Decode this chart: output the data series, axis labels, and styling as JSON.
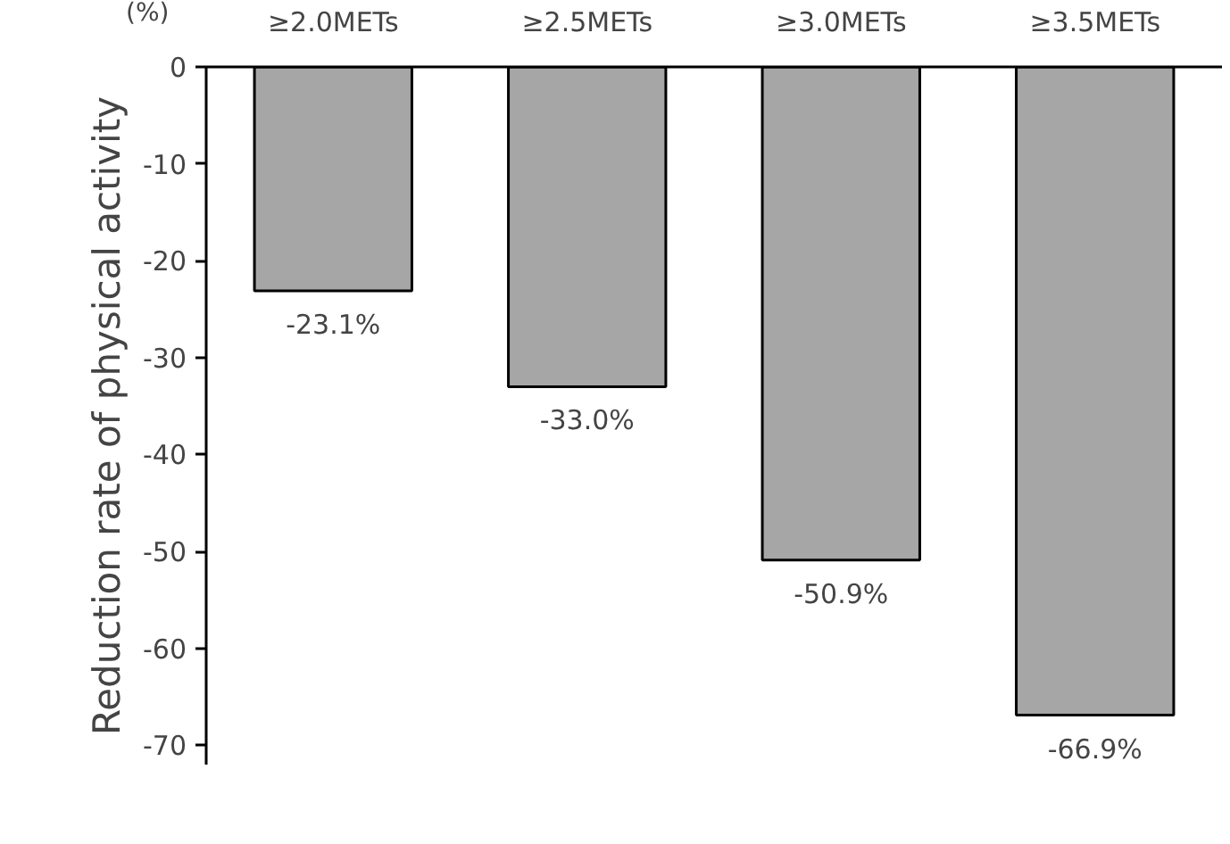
{
  "chart_data": {
    "type": "bar",
    "ylabel": "Reduction rate of physical activity",
    "annotations": [
      "(%)"
    ],
    "categories": [
      "≥2.0METs",
      "≥2.5METs",
      "≥3.0METs",
      "≥3.5METs"
    ],
    "values": [
      -23.1,
      -33.0,
      -50.9,
      -66.9
    ],
    "value_labels": [
      "-23.1%",
      "-33.0%",
      "-50.9%",
      "-66.9%"
    ],
    "color": "#a6a6a6",
    "ylim": [
      -72,
      0
    ],
    "yticks": [
      0,
      -10,
      -20,
      -30,
      -40,
      -50,
      -60,
      -70
    ],
    "grid": false
  }
}
